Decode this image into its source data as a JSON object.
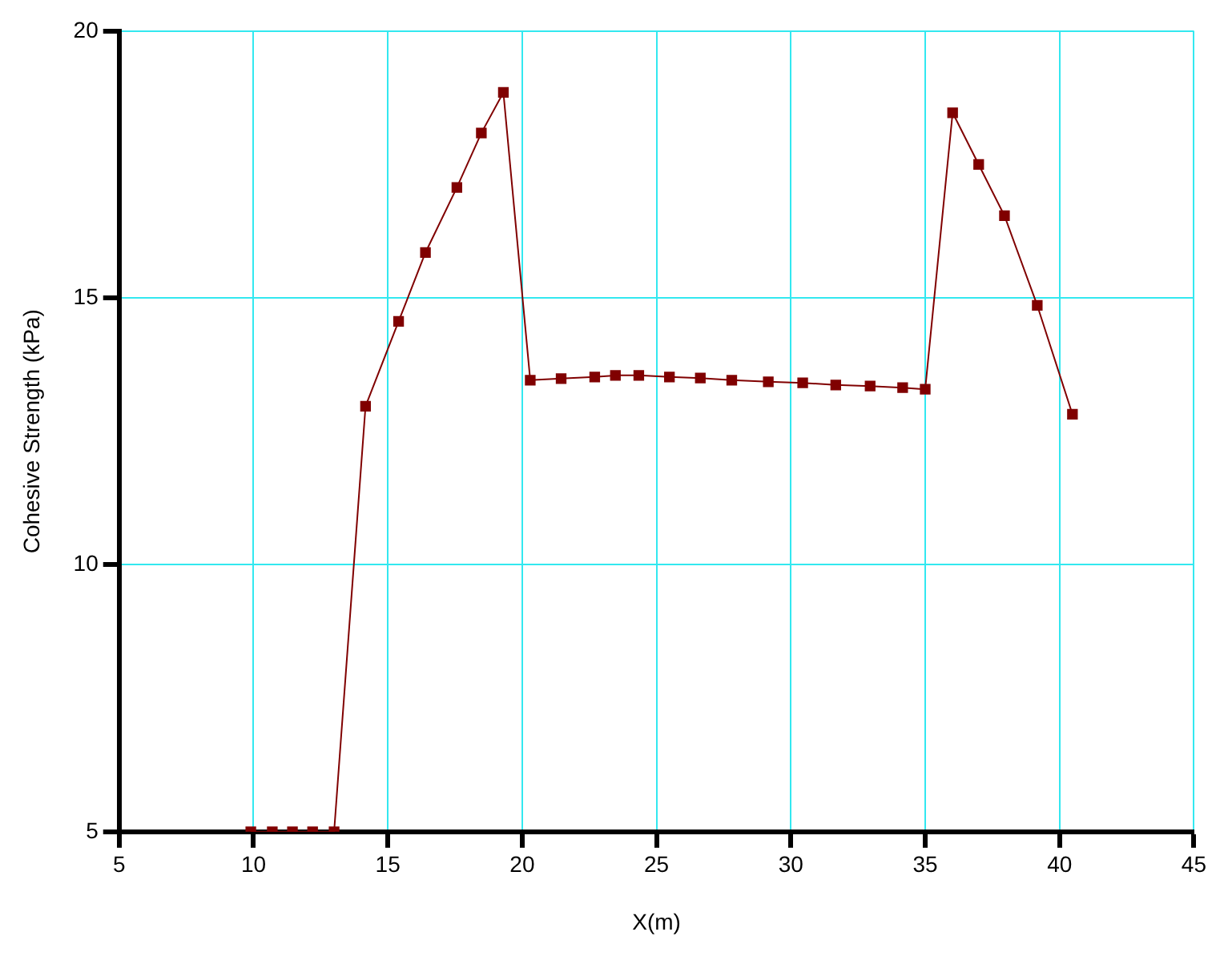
{
  "chart_data": {
    "type": "line",
    "xlabel": "X(m)",
    "ylabel": "Cohesive Strength (kPa)",
    "x": [
      9.9,
      10.7,
      11.45,
      12.2,
      13.0,
      14.17,
      15.4,
      16.4,
      17.57,
      18.48,
      19.3,
      20.3,
      21.45,
      22.7,
      23.47,
      24.34,
      25.48,
      26.63,
      27.8,
      29.16,
      30.44,
      31.67,
      32.95,
      34.16,
      35.0,
      36.02,
      36.99,
      37.95,
      39.17,
      40.48
    ],
    "series": [
      {
        "color": "#800000",
        "values": [
          5,
          5,
          5,
          5,
          5,
          12.97,
          14.56,
          15.85,
          17.07,
          18.09,
          18.85,
          13.46,
          13.49,
          13.52,
          13.55,
          13.55,
          13.52,
          13.5,
          13.46,
          13.43,
          13.41,
          13.37,
          13.35,
          13.32,
          13.29,
          18.47,
          17.5,
          16.54,
          14.86,
          12.82
        ]
      }
    ],
    "xlim": [
      5,
      45
    ],
    "xticks": [
      5,
      10,
      15,
      20,
      25,
      30,
      35,
      40,
      45
    ],
    "ylim": [
      5,
      20
    ],
    "yticks": [
      5,
      10,
      15,
      20
    ],
    "grid": true,
    "legend": false,
    "marker": "square",
    "line_style": "solid"
  }
}
